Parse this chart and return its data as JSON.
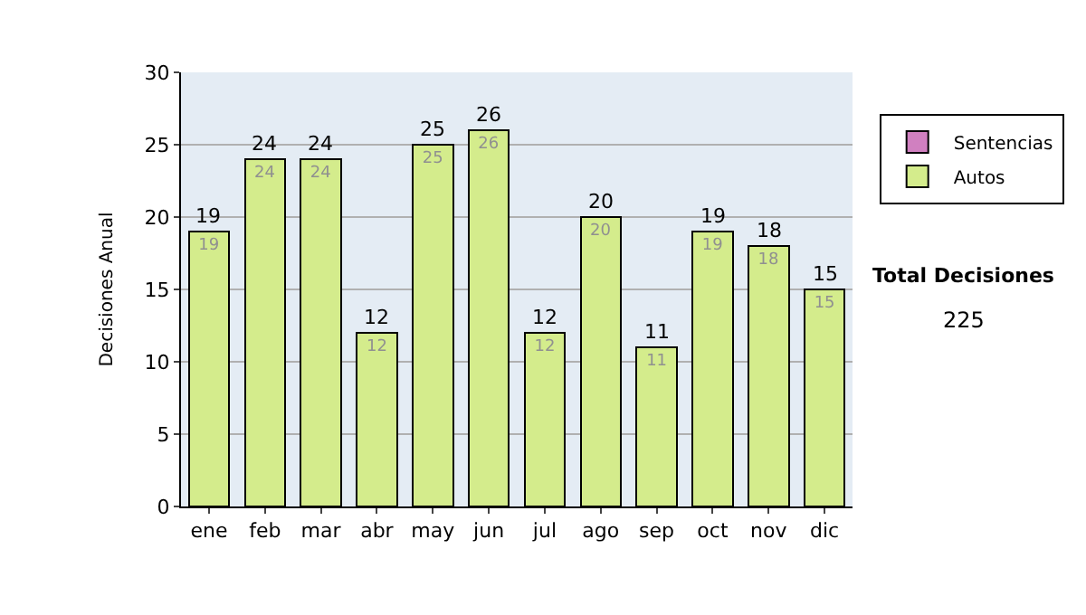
{
  "chart_data": {
    "type": "bar",
    "stacked": true,
    "ylabel": "Decisiones Anual",
    "categories": [
      "ene",
      "feb",
      "mar",
      "abr",
      "may",
      "jun",
      "jul",
      "ago",
      "sep",
      "oct",
      "nov",
      "dic"
    ],
    "series": [
      {
        "name": "Autos",
        "color": "#d4ec8c",
        "values": [
          19,
          24,
          24,
          12,
          25,
          26,
          12,
          20,
          11,
          19,
          18,
          15
        ],
        "value_labels": [
          "19",
          "24",
          "24",
          "12",
          "25",
          "26",
          "12",
          "20",
          "11",
          "19",
          "18",
          "15"
        ]
      },
      {
        "name": "Sentencias",
        "color": "#d080c0",
        "values": [
          null,
          null,
          null,
          null,
          null,
          null,
          null,
          null,
          null,
          null,
          null,
          null
        ]
      }
    ],
    "totals": [
      "19",
      "24",
      "24",
      "12",
      "25",
      "26",
      "12",
      "20",
      "11",
      "19",
      "18",
      "15"
    ],
    "ylim": [
      0,
      30
    ],
    "yticks": [
      0,
      5,
      10,
      15,
      20,
      25,
      30
    ],
    "grid": "y",
    "legend": "right",
    "annotations": [
      "Total Decisiones",
      "225"
    ]
  }
}
